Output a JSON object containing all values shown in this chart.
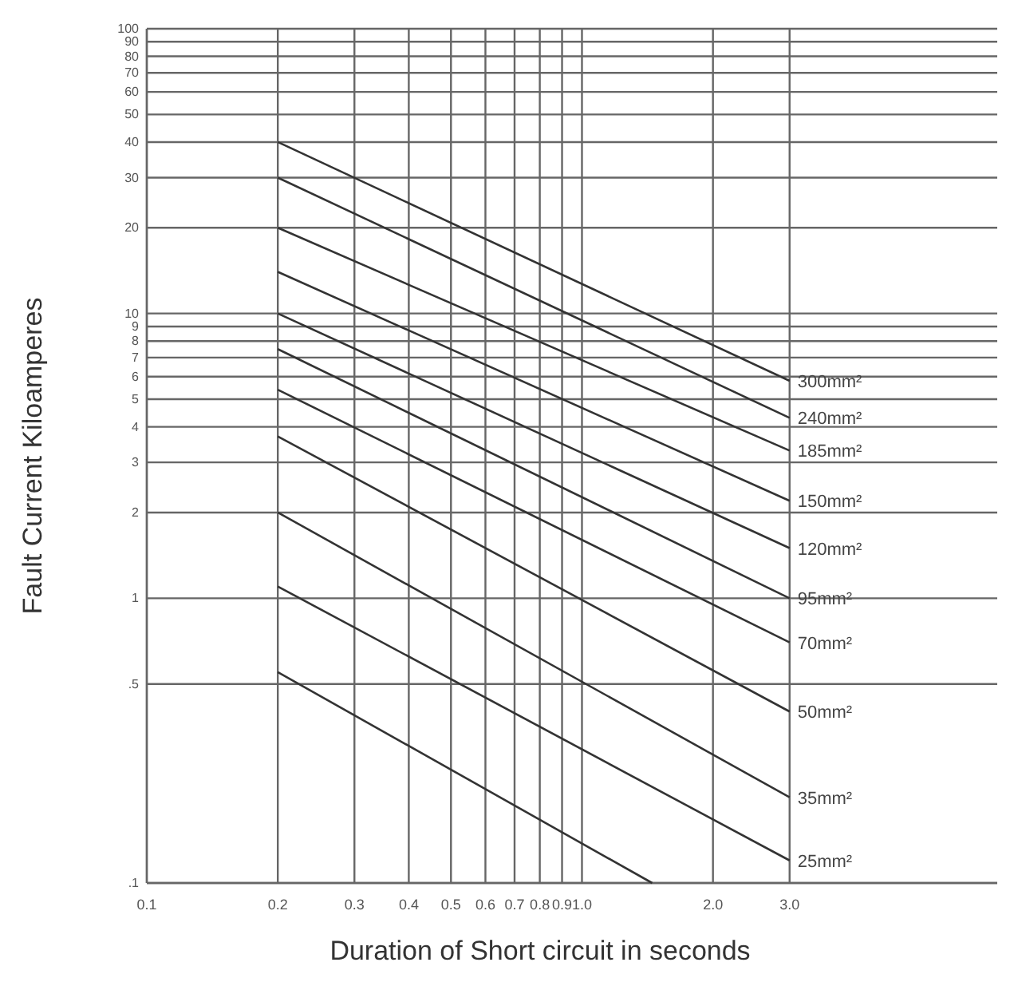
{
  "chart_data": {
    "type": "line",
    "xlabel": "Duration of Short circuit in seconds",
    "ylabel": "Fault Current Kiloamperes",
    "log": "xy",
    "grid": true,
    "legend": false,
    "marker": "none",
    "line_style": "solid",
    "xlim": [
      0.1,
      9
    ],
    "ylim": [
      0.1,
      100
    ],
    "xticks": [
      0.1,
      0.2,
      0.3,
      0.4,
      0.5,
      0.6,
      0.7,
      0.8,
      0.9,
      {
        "value": 1,
        "label": "1.0"
      },
      {
        "value": 2,
        "label": "2.0"
      },
      {
        "value": 3,
        "label": "3.0"
      }
    ],
    "yticks": [
      {
        "value": 0.1,
        "label": ".1"
      },
      {
        "value": 0.5,
        "label": ".5"
      },
      1,
      2,
      3,
      4,
      5,
      6,
      7,
      8,
      9,
      10,
      20,
      30,
      40,
      50,
      60,
      70,
      80,
      90,
      100
    ],
    "x": [
      0.2,
      3
    ],
    "series": [
      {
        "name": "300mm²",
        "color": "#333333",
        "values": [
          40,
          5.8
        ]
      },
      {
        "name": "240mm²",
        "color": "#333333",
        "values": [
          30,
          4.3
        ]
      },
      {
        "name": "185mm²",
        "color": "#333333",
        "values": [
          20,
          3.3
        ]
      },
      {
        "name": "150mm²",
        "color": "#333333",
        "values": [
          14,
          2.2
        ]
      },
      {
        "name": "120mm²",
        "color": "#333333",
        "values": [
          10,
          1.5
        ]
      },
      {
        "name": "95mm²",
        "color": "#333333",
        "values": [
          7.5,
          1.0
        ]
      },
      {
        "name": "70mm²",
        "color": "#333333",
        "values": [
          5.4,
          0.7
        ]
      },
      {
        "name": "50mm²",
        "color": "#333333",
        "values": [
          3.7,
          0.4
        ]
      },
      {
        "name": "35mm²",
        "color": "#333333",
        "values": [
          2,
          0.2
        ]
      },
      {
        "name": "25mm²",
        "color": "#333333",
        "values": [
          1.1,
          0.12
        ]
      },
      {
        "color": "#333333",
        "x": [
          0.2,
          1.45
        ],
        "values": [
          0.55,
          0.1
        ]
      }
    ]
  }
}
